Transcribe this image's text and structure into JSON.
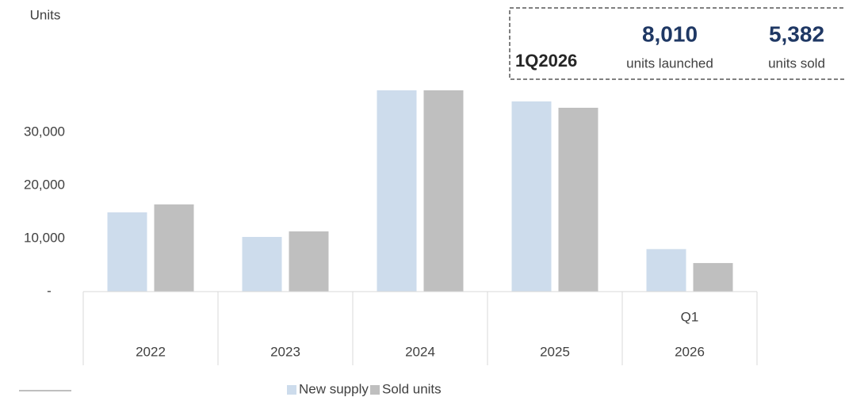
{
  "chart_data": {
    "type": "bar",
    "y_axis_label": "Units",
    "categories": [
      "2022",
      "2023",
      "2024",
      "2025",
      "2026"
    ],
    "category_sublabels": [
      null,
      null,
      null,
      null,
      "Q1"
    ],
    "series": [
      {
        "name": "New supply",
        "color": "#cddcec",
        "values": [
          14925,
          10300,
          37910,
          35820,
          8010
        ]
      },
      {
        "name": "Sold units",
        "color": "#bfbfbf",
        "values": [
          16420,
          11340,
          37910,
          34630,
          5382
        ]
      }
    ],
    "ylim": [
      0,
      40000
    ],
    "yticks": [
      {
        "value": 0,
        "label": "-"
      },
      {
        "value": 10000,
        "label": "10,000"
      },
      {
        "value": 20000,
        "label": "20,000"
      },
      {
        "value": 30000,
        "label": "30,000"
      }
    ],
    "grid": false,
    "legend": "bottom",
    "callout": {
      "title": "1Q2026",
      "items": [
        {
          "label": "8,010",
          "caption": "units launched"
        },
        {
          "label": "5,382",
          "caption": "units sold"
        }
      ]
    }
  }
}
